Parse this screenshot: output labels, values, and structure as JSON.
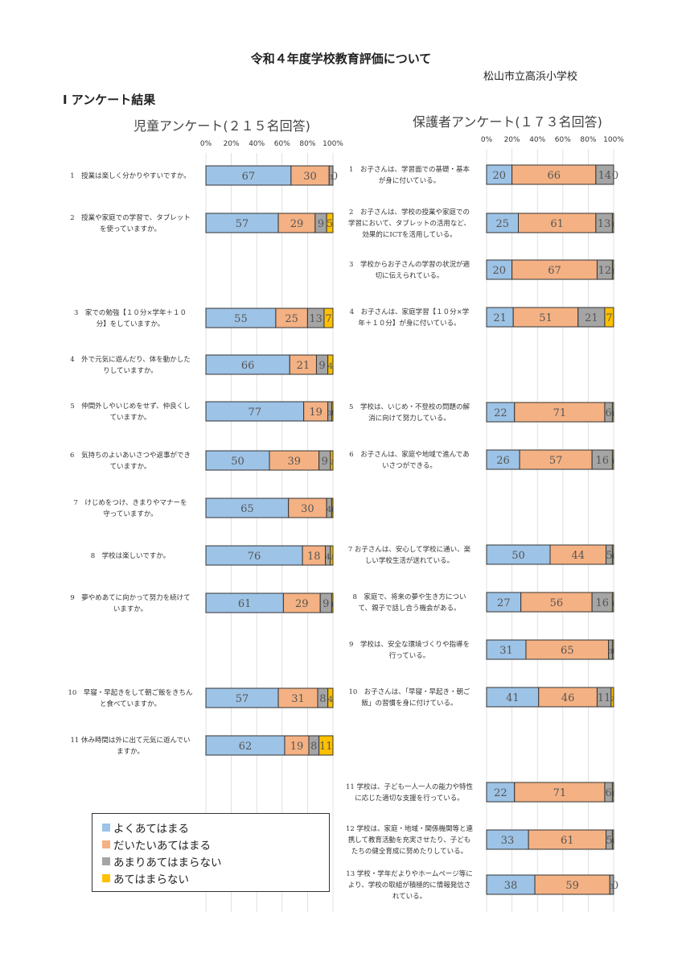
{
  "header": {
    "title": "令和４年度学校教育評価について",
    "school": "松山市立高浜小学校",
    "section_heading": "Ⅰ アンケート結果"
  },
  "colors": {
    "yoku": "#9dc3e6",
    "daitai": "#f4b183",
    "amari": "#a5a5a5",
    "atehamaranai": "#ffc000"
  },
  "legend": {
    "items": [
      {
        "label": "よくあてはまる",
        "color": "#9dc3e6"
      },
      {
        "label": "だいたいあてはまる",
        "color": "#f4b183"
      },
      {
        "label": "あまりあてはまらない",
        "color": "#a5a5a5"
      },
      {
        "label": "あてはまらない",
        "color": "#ffc000"
      }
    ]
  },
  "chart_data": [
    {
      "type": "bar",
      "orientation": "horizontal-stacked",
      "title": "児童アンケート(２１５名回答)",
      "xlim": [
        0,
        100
      ],
      "ticks": [
        "0%",
        "20%",
        "40%",
        "60%",
        "80%",
        "100%"
      ],
      "series_names": [
        "よくあてはまる",
        "だいたいあてはまる",
        "あまりあてはまらない",
        "あてはまらない"
      ],
      "rows": [
        {
          "label": "1　授業は楽しく分かりやすいですか。",
          "values": [
            67,
            30,
            3,
            0
          ],
          "labels": [
            "67",
            "30",
            "3",
            "0"
          ]
        },
        {
          "label": "2　授業や家庭での学習で、タブレットを使っていますか。",
          "values": [
            57,
            29,
            9,
            5
          ],
          "labels": [
            "57",
            "29",
            "9",
            "5"
          ]
        },
        {
          "label": "3　家での勉強【１０分×学年＋１０分】をしていますか。",
          "values": [
            55,
            25,
            13,
            7
          ],
          "labels": [
            "55",
            "25",
            "13",
            "7"
          ]
        },
        {
          "label": "4　外で元気に遊んだり、体を動かしたりしていますか。",
          "values": [
            66,
            21,
            9,
            4
          ],
          "labels": [
            "66",
            "21",
            "9",
            "4"
          ]
        },
        {
          "label": "5　仲間外しやいじめをせず、仲良くしていますか。",
          "values": [
            77,
            19,
            3,
            1
          ],
          "labels": [
            "77",
            "19",
            "3",
            "1"
          ]
        },
        {
          "label": "6　気持ちのよいあいさつや返事ができていますか。",
          "values": [
            50,
            39,
            9,
            2
          ],
          "labels": [
            "50",
            "39",
            "9",
            "2"
          ]
        },
        {
          "label": "7　けじめをつけ、きまりやマナーを守っていますか。",
          "values": [
            65,
            30,
            4,
            1
          ],
          "labels": [
            "65",
            "30",
            "4",
            "1"
          ]
        },
        {
          "label": "8　学校は楽しいですか。",
          "values": [
            76,
            18,
            4,
            2
          ],
          "labels": [
            "76",
            "18",
            "4",
            "2"
          ]
        },
        {
          "label": "9　夢やめあてに向かって努力を続けていますか。",
          "values": [
            61,
            29,
            9,
            1
          ],
          "labels": [
            "61",
            "29",
            "9",
            "1"
          ]
        },
        {
          "label": "10　早寝・早起きをして朝ご飯をきちんと食べていますか。",
          "values": [
            57,
            31,
            8,
            4
          ],
          "labels": [
            "57",
            "31",
            "8",
            "4"
          ]
        },
        {
          "label": "11 休み時間は外に出て元気に遊んでいますか。",
          "values": [
            62,
            19,
            8,
            11
          ],
          "labels": [
            "62",
            "19",
            "8",
            "11"
          ]
        }
      ]
    },
    {
      "type": "bar",
      "orientation": "horizontal-stacked",
      "title": "保護者アンケート(１７３名回答)",
      "xlim": [
        0,
        100
      ],
      "ticks": [
        "0%",
        "20%",
        "40%",
        "60%",
        "80%",
        "100%"
      ],
      "series_names": [
        "よくあてはまる",
        "だいたいあてはまる",
        "あまりあてはまらない",
        "あてはまらない"
      ],
      "rows": [
        {
          "label": "1　お子さんは、学習面での基礎・基本が身に付いている。",
          "values": [
            20,
            66,
            14,
            0
          ],
          "labels": [
            "20",
            "66",
            "14",
            "0"
          ]
        },
        {
          "label": "2　お子さんは、学校の授業や家庭での学習において、タブレットの活用など、効果的にICTを活用している。",
          "values": [
            25,
            61,
            13,
            1
          ],
          "labels": [
            "25",
            "61",
            "13",
            "1"
          ]
        },
        {
          "label": "3　学校からお子さんの学習の状況が適切に伝えられている。",
          "values": [
            20,
            67,
            12,
            1
          ],
          "labels": [
            "20",
            "67",
            "12",
            "1"
          ]
        },
        {
          "label": "4　お子さんは、家庭学習【１０分×学年＋１０分】が身に付いている。",
          "values": [
            21,
            51,
            21,
            7
          ],
          "labels": [
            "21",
            "51",
            "21",
            "7"
          ]
        },
        {
          "label": "5　学校は、いじめ・不登校の問題の解消に向けて努力している。",
          "values": [
            22,
            71,
            6,
            1
          ],
          "labels": [
            "22",
            "71",
            "6",
            "1"
          ]
        },
        {
          "label": "6　お子さんは、家庭や地域で進んであいさつができる。",
          "values": [
            26,
            57,
            16,
            1
          ],
          "labels": [
            "26",
            "57",
            "16",
            "1"
          ]
        },
        {
          "label": "7 お子さんは、安心して学校に通い、楽しい学校生活が送れている。",
          "values": [
            50,
            44,
            5,
            1
          ],
          "labels": [
            "50",
            "44",
            "5",
            "1"
          ]
        },
        {
          "label": "8　家庭で、将来の夢や生き方について、親子で話し合う機会がある。",
          "values": [
            27,
            56,
            16,
            1
          ],
          "labels": [
            "27",
            "56",
            "16",
            "1"
          ]
        },
        {
          "label": "9　学校は、安全な環境づくりや指導を行っている。",
          "values": [
            31,
            65,
            3,
            1
          ],
          "labels": [
            "31",
            "65",
            "3",
            "1"
          ]
        },
        {
          "label": "10　お子さんは、「早寝・早起き・朝ご飯」の習慣を身に付けている。",
          "values": [
            41,
            46,
            11,
            2
          ],
          "labels": [
            "41",
            "46",
            "11",
            "2"
          ]
        },
        {
          "label": "11 学校は、子ども一人一人の能力や特性に応じた適切な支援を行っている。",
          "values": [
            22,
            71,
            6,
            1
          ],
          "labels": [
            "22",
            "71",
            "6",
            "1"
          ]
        },
        {
          "label": "12 学校は、家庭・地域・関係機関等と連携して教育活動を充実させたり、子どもたちの健全育成に努めたりしている。",
          "values": [
            33,
            61,
            5,
            1
          ],
          "labels": [
            "33",
            "61",
            "5",
            "1"
          ]
        },
        {
          "label": "13 学校・学年だよりやホームページ等により、学校の取組が積極的に情報発信されている。",
          "values": [
            38,
            59,
            3,
            0
          ],
          "labels": [
            "38",
            "59",
            "3",
            "0"
          ]
        }
      ]
    }
  ]
}
